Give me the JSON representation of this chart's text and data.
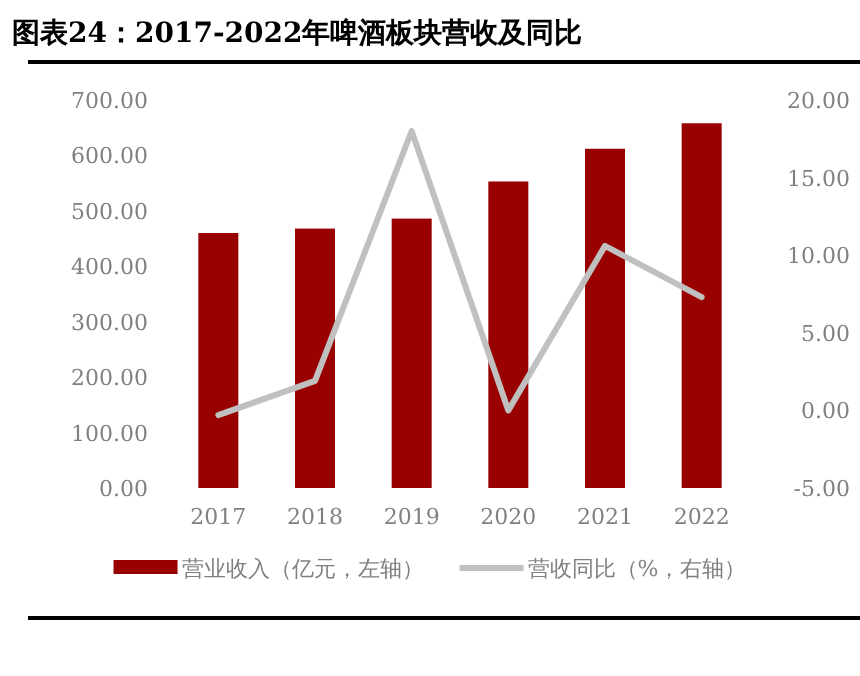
{
  "chart_data": {
    "type": "bar",
    "title": "图表24：2017-2022年啤酒板块营收及同比",
    "categories": [
      "2017",
      "2018",
      "2019",
      "2020",
      "2021",
      "2022"
    ],
    "series": [
      {
        "name": "营业收入（亿元，左轴）",
        "color": "#990000",
        "values": [
          460,
          468,
          486,
          553,
          612,
          658
        ]
      },
      {
        "name": "营收同比（%，右轴）",
        "type": "line",
        "axis": "y2",
        "color": "#c0c0c0",
        "values": [
          -0.3,
          1.9,
          18.0,
          0.0,
          10.6,
          7.3
        ]
      }
    ],
    "ylim": [
      0,
      700
    ],
    "yticks": [
      {
        "value": 0,
        "label": "0.00"
      },
      {
        "value": 100,
        "label": "100.00"
      },
      {
        "value": 200,
        "label": "200.00"
      },
      {
        "value": 300,
        "label": "300.00"
      },
      {
        "value": 400,
        "label": "400.00"
      },
      {
        "value": 500,
        "label": "500.00"
      },
      {
        "value": 600,
        "label": "600.00"
      },
      {
        "value": 700,
        "label": "700.00"
      }
    ],
    "y2lim": [
      -5,
      20
    ],
    "y2ticks": [
      {
        "value": -5,
        "label": "-5.00"
      },
      {
        "value": 0,
        "label": "0.00"
      },
      {
        "value": 5,
        "label": "5.00"
      },
      {
        "value": 10,
        "label": "10.00"
      },
      {
        "value": 15,
        "label": "15.00"
      },
      {
        "value": 20,
        "label": "20.00"
      }
    ],
    "legend": "bottom",
    "grid": false
  }
}
